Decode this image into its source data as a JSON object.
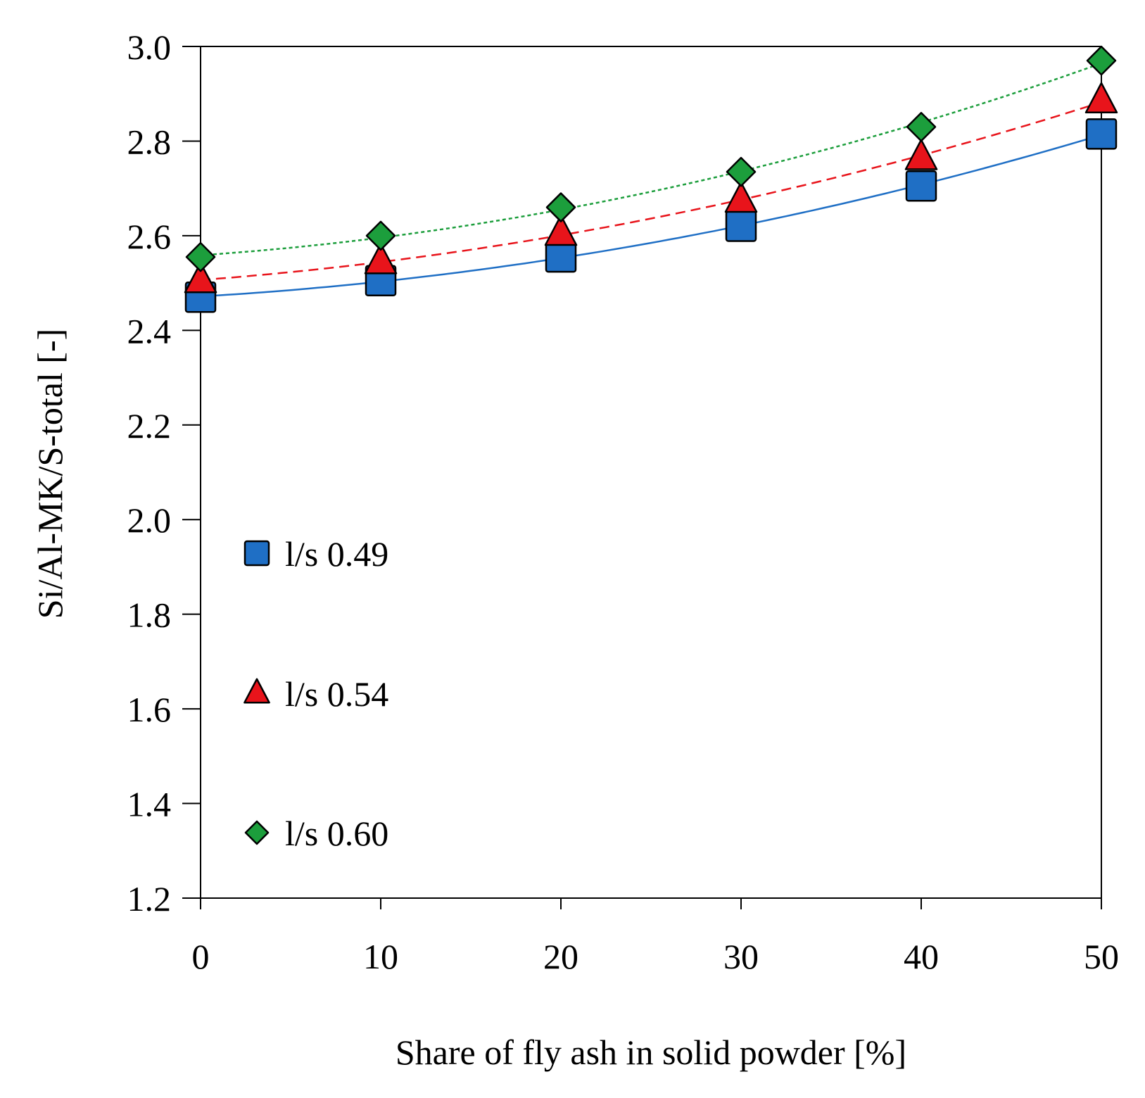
{
  "chart_data": {
    "type": "scatter",
    "title": "",
    "xlabel": "Share of fly ash in solid powder [%]",
    "ylabel": "Si/Al-MK/S-total [-]",
    "xlim": [
      0,
      50
    ],
    "ylim": [
      1.2,
      3.0
    ],
    "x_ticks": [
      0,
      10,
      20,
      30,
      40,
      50
    ],
    "x_tick_labels": [
      "0",
      "10",
      "20",
      "30",
      "40",
      "50"
    ],
    "y_ticks": [
      1.2,
      1.4,
      1.6,
      1.8,
      2.0,
      2.2,
      2.4,
      2.6,
      2.8,
      3.0
    ],
    "y_tick_labels": [
      "1.2",
      "1.4",
      "1.6",
      "1.8",
      "2.0",
      "2.2",
      "2.4",
      "2.6",
      "2.8",
      "3.0"
    ],
    "grid": false,
    "legend_position": "left-middle",
    "x": [
      0,
      10,
      20,
      30,
      40,
      50
    ],
    "series": [
      {
        "name": "l/s 0.49",
        "marker": "square",
        "color": "#1f6fc5",
        "line_style": "solid",
        "values": [
          2.47,
          2.505,
          2.555,
          2.62,
          2.705,
          2.815
        ]
      },
      {
        "name": "l/s 0.54",
        "marker": "triangle",
        "color": "#e8141b",
        "line_style": "dashed",
        "values": [
          2.505,
          2.545,
          2.605,
          2.675,
          2.765,
          2.885
        ]
      },
      {
        "name": "l/s 0.60",
        "marker": "diamond",
        "color": "#1c9e3c",
        "line_style": "dotted",
        "values": [
          2.555,
          2.6,
          2.66,
          2.735,
          2.83,
          2.97
        ]
      }
    ]
  }
}
